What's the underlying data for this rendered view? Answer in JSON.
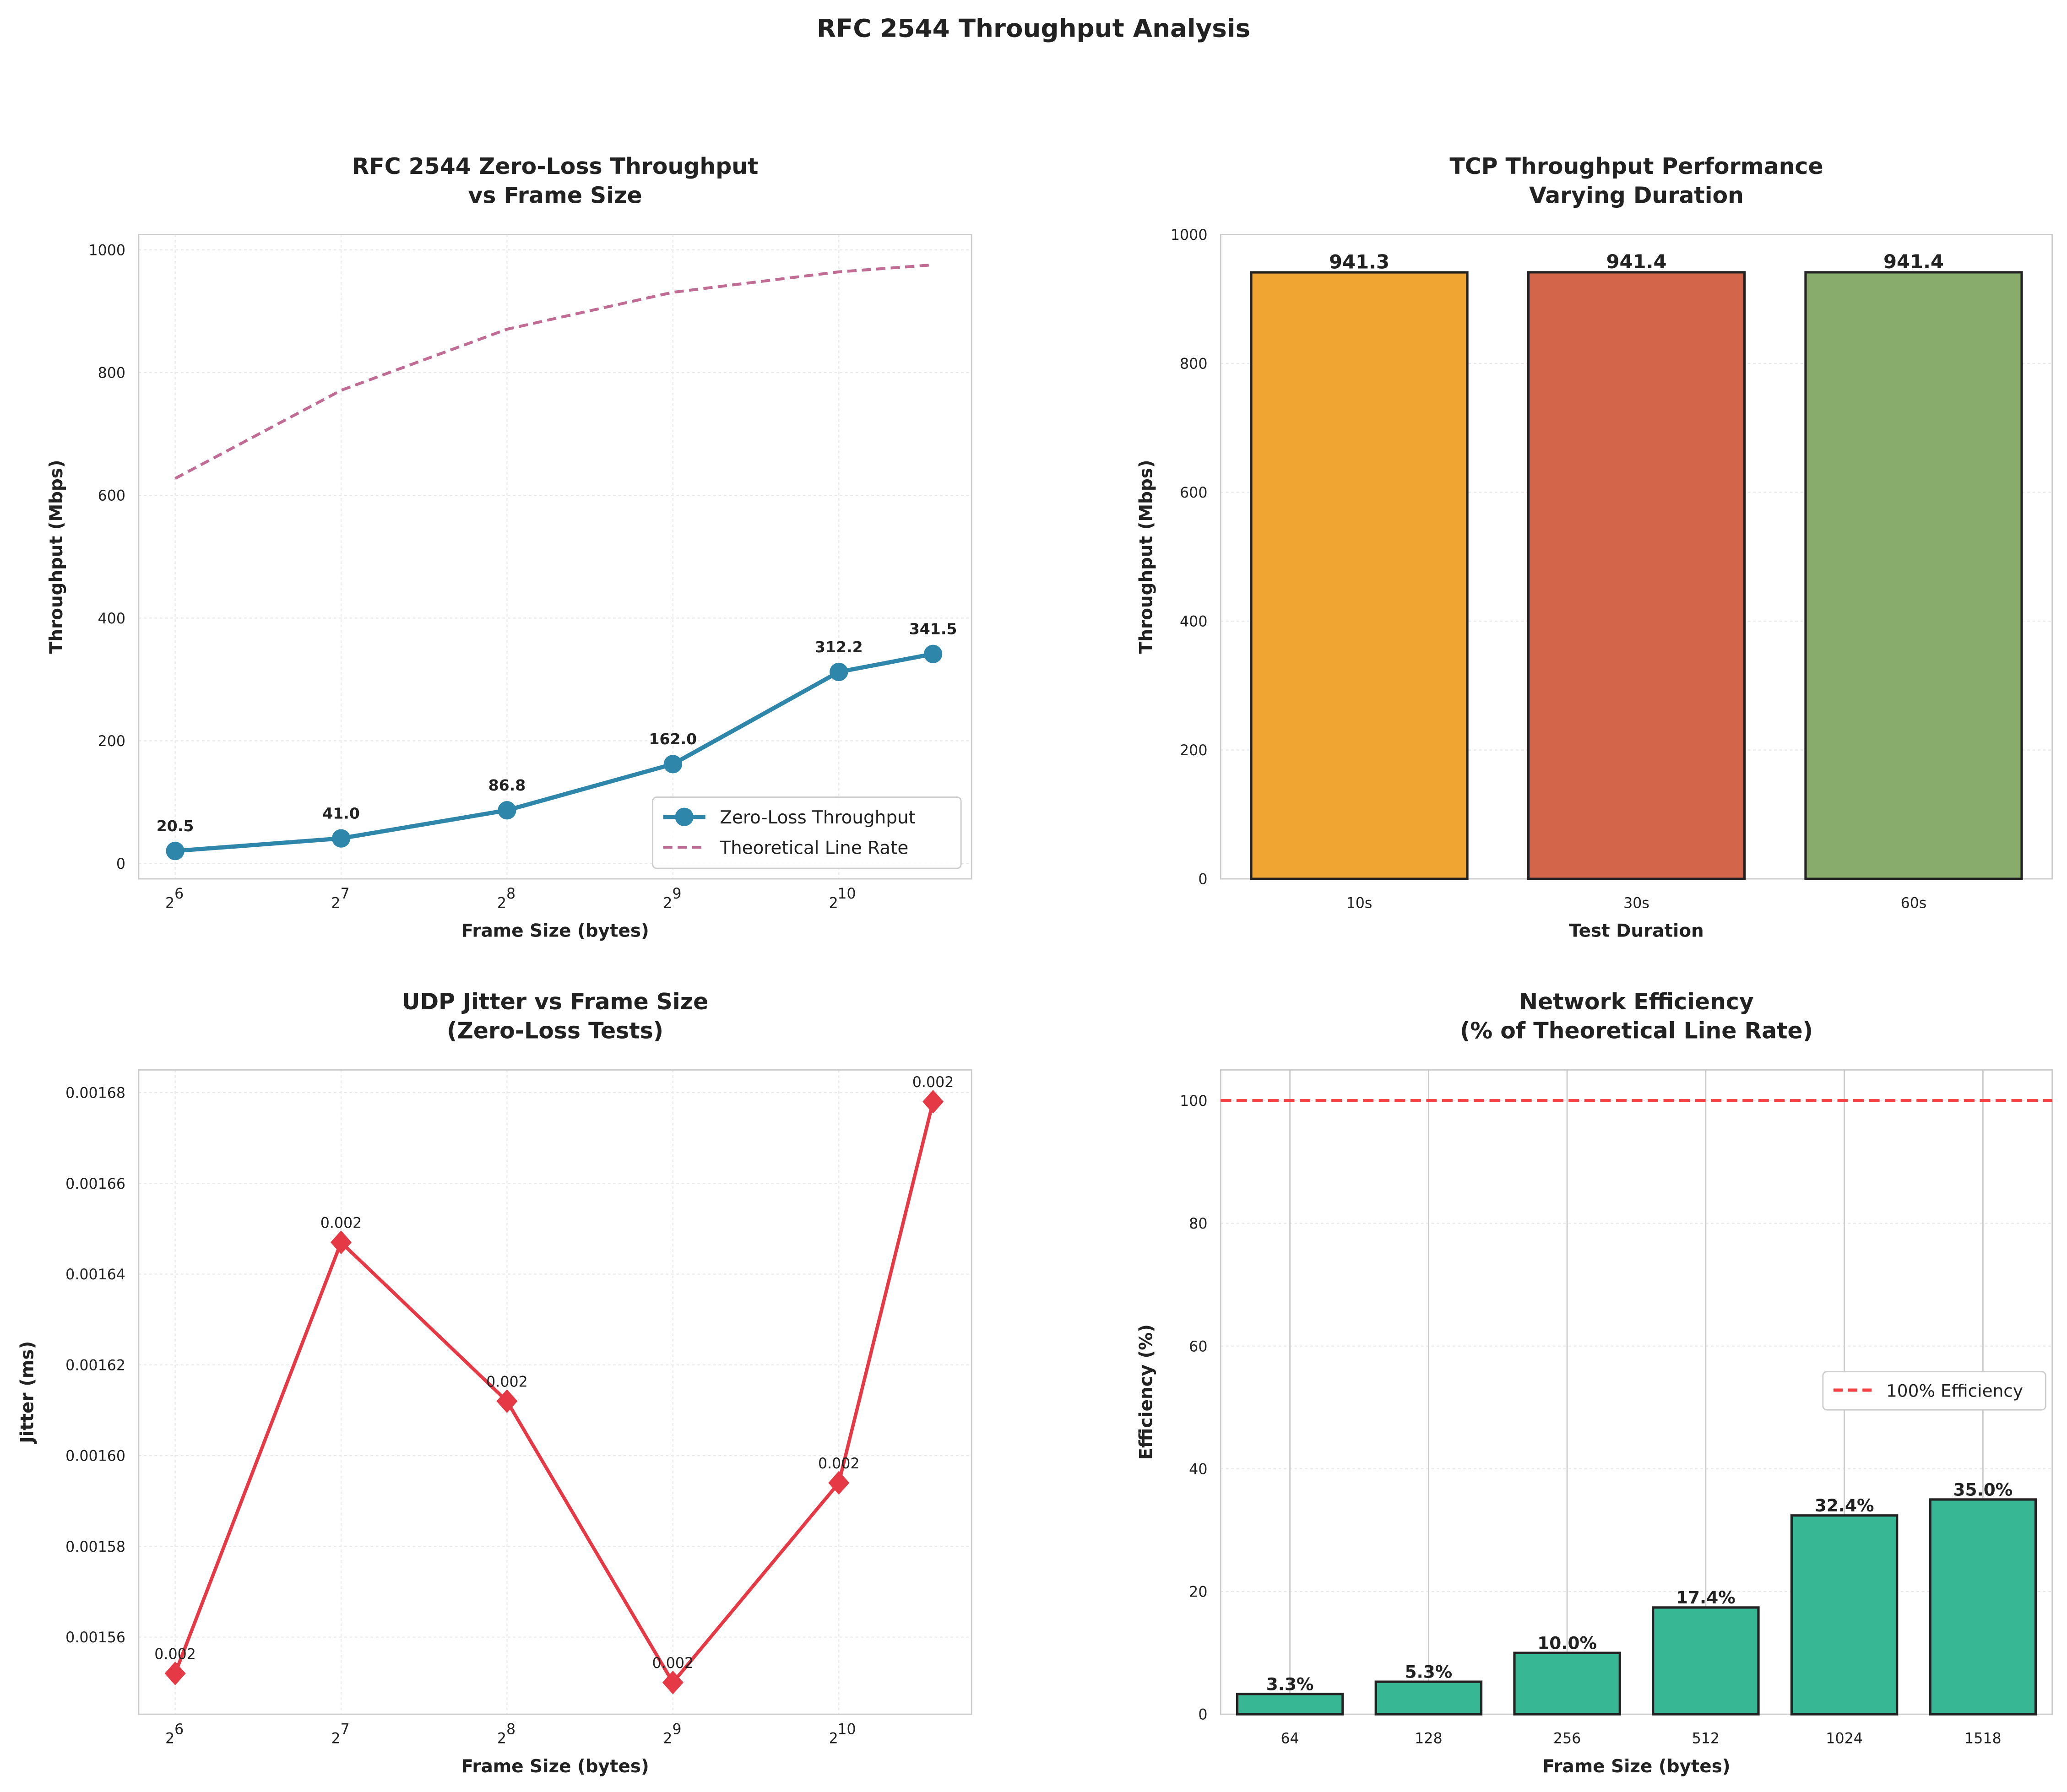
{
  "title": "RFC 2544 Throughput Analysis",
  "chart_data": [
    {
      "type": "line",
      "title": "RFC 2544 Zero-Loss Throughput\nvs Frame Size",
      "xlabel": "Frame Size (bytes)",
      "ylabel": "Throughput (Mbps)",
      "xscale": "log2",
      "x": [
        64,
        128,
        256,
        512,
        1024,
        1518
      ],
      "xticks": [
        6,
        7,
        8,
        9,
        10
      ],
      "ylim": [
        -25,
        1025
      ],
      "yticks": [
        0,
        200,
        400,
        600,
        800,
        1000
      ],
      "grid": true,
      "legend": "lower-right",
      "series": [
        {
          "name": "Zero-Loss Throughput",
          "values": [
            20.5,
            41.0,
            86.8,
            162.0,
            312.2,
            341.5
          ],
          "color": "#2E86AB",
          "labels": [
            "20.5",
            "41.0",
            "86.8",
            "162.0",
            "312.2",
            "341.5"
          ]
        },
        {
          "name": "Theoretical Line Rate",
          "values": [
            627.5,
            771.1,
            870.7,
            930.9,
            964.2,
            975.6
          ],
          "color": "#C06C94",
          "style": "dashed"
        }
      ]
    },
    {
      "type": "bar",
      "title": "TCP Throughput Performance\nVarying Duration",
      "xlabel": "Test Duration",
      "ylabel": "Throughput (Mbps)",
      "categories": [
        "10s",
        "30s",
        "60s"
      ],
      "values": [
        941.3,
        941.4,
        941.4
      ],
      "labels": [
        "941.3",
        "941.4",
        "941.4"
      ],
      "colors": [
        "#F0A431",
        "#D3654A",
        "#88AC6B"
      ],
      "ylim": [
        0,
        1000
      ],
      "yticks": [
        0,
        200,
        400,
        600,
        800,
        1000
      ],
      "grid": true
    },
    {
      "type": "line",
      "title": "UDP Jitter vs Frame Size\n(Zero-Loss Tests)",
      "xlabel": "Frame Size (bytes)",
      "ylabel": "Jitter (ms)",
      "xscale": "log2",
      "x": [
        64,
        128,
        256,
        512,
        1024,
        1518
      ],
      "xticks": [
        6,
        7,
        8,
        9,
        10
      ],
      "ylim": [
        0.001543,
        0.001685
      ],
      "yticks": [
        "0.00156",
        "0.00158",
        "0.00160",
        "0.00162",
        "0.00164",
        "0.00166",
        "0.00168"
      ],
      "grid": true,
      "series": [
        {
          "values": [
            0.001552,
            0.001647,
            0.001612,
            0.00155,
            0.001594,
            0.001678
          ],
          "color": "#E63946",
          "marker": "diamond",
          "labels": [
            "0.002",
            "0.002",
            "0.002",
            "0.002",
            "0.002",
            "0.002"
          ]
        }
      ]
    },
    {
      "type": "bar",
      "title": "Network Efficiency\n(% of Theoretical Line Rate)",
      "xlabel": "Frame Size (bytes)",
      "ylabel": "Efficiency (%)",
      "categories": [
        "64",
        "128",
        "256",
        "512",
        "1024",
        "1518"
      ],
      "values": [
        3.3,
        5.3,
        10.0,
        17.4,
        32.4,
        35.0
      ],
      "labels": [
        "3.3%",
        "5.3%",
        "10.0%",
        "17.4%",
        "32.4%",
        "35.0%"
      ],
      "color": "#37B794",
      "ylim": [
        0,
        105
      ],
      "yticks": [
        0,
        20,
        40,
        60,
        80,
        100
      ],
      "reference_line": {
        "y": 100,
        "name": "100% Efficiency",
        "color": "#F24040",
        "style": "dashed"
      },
      "legend": "center-right",
      "grid": true
    }
  ]
}
